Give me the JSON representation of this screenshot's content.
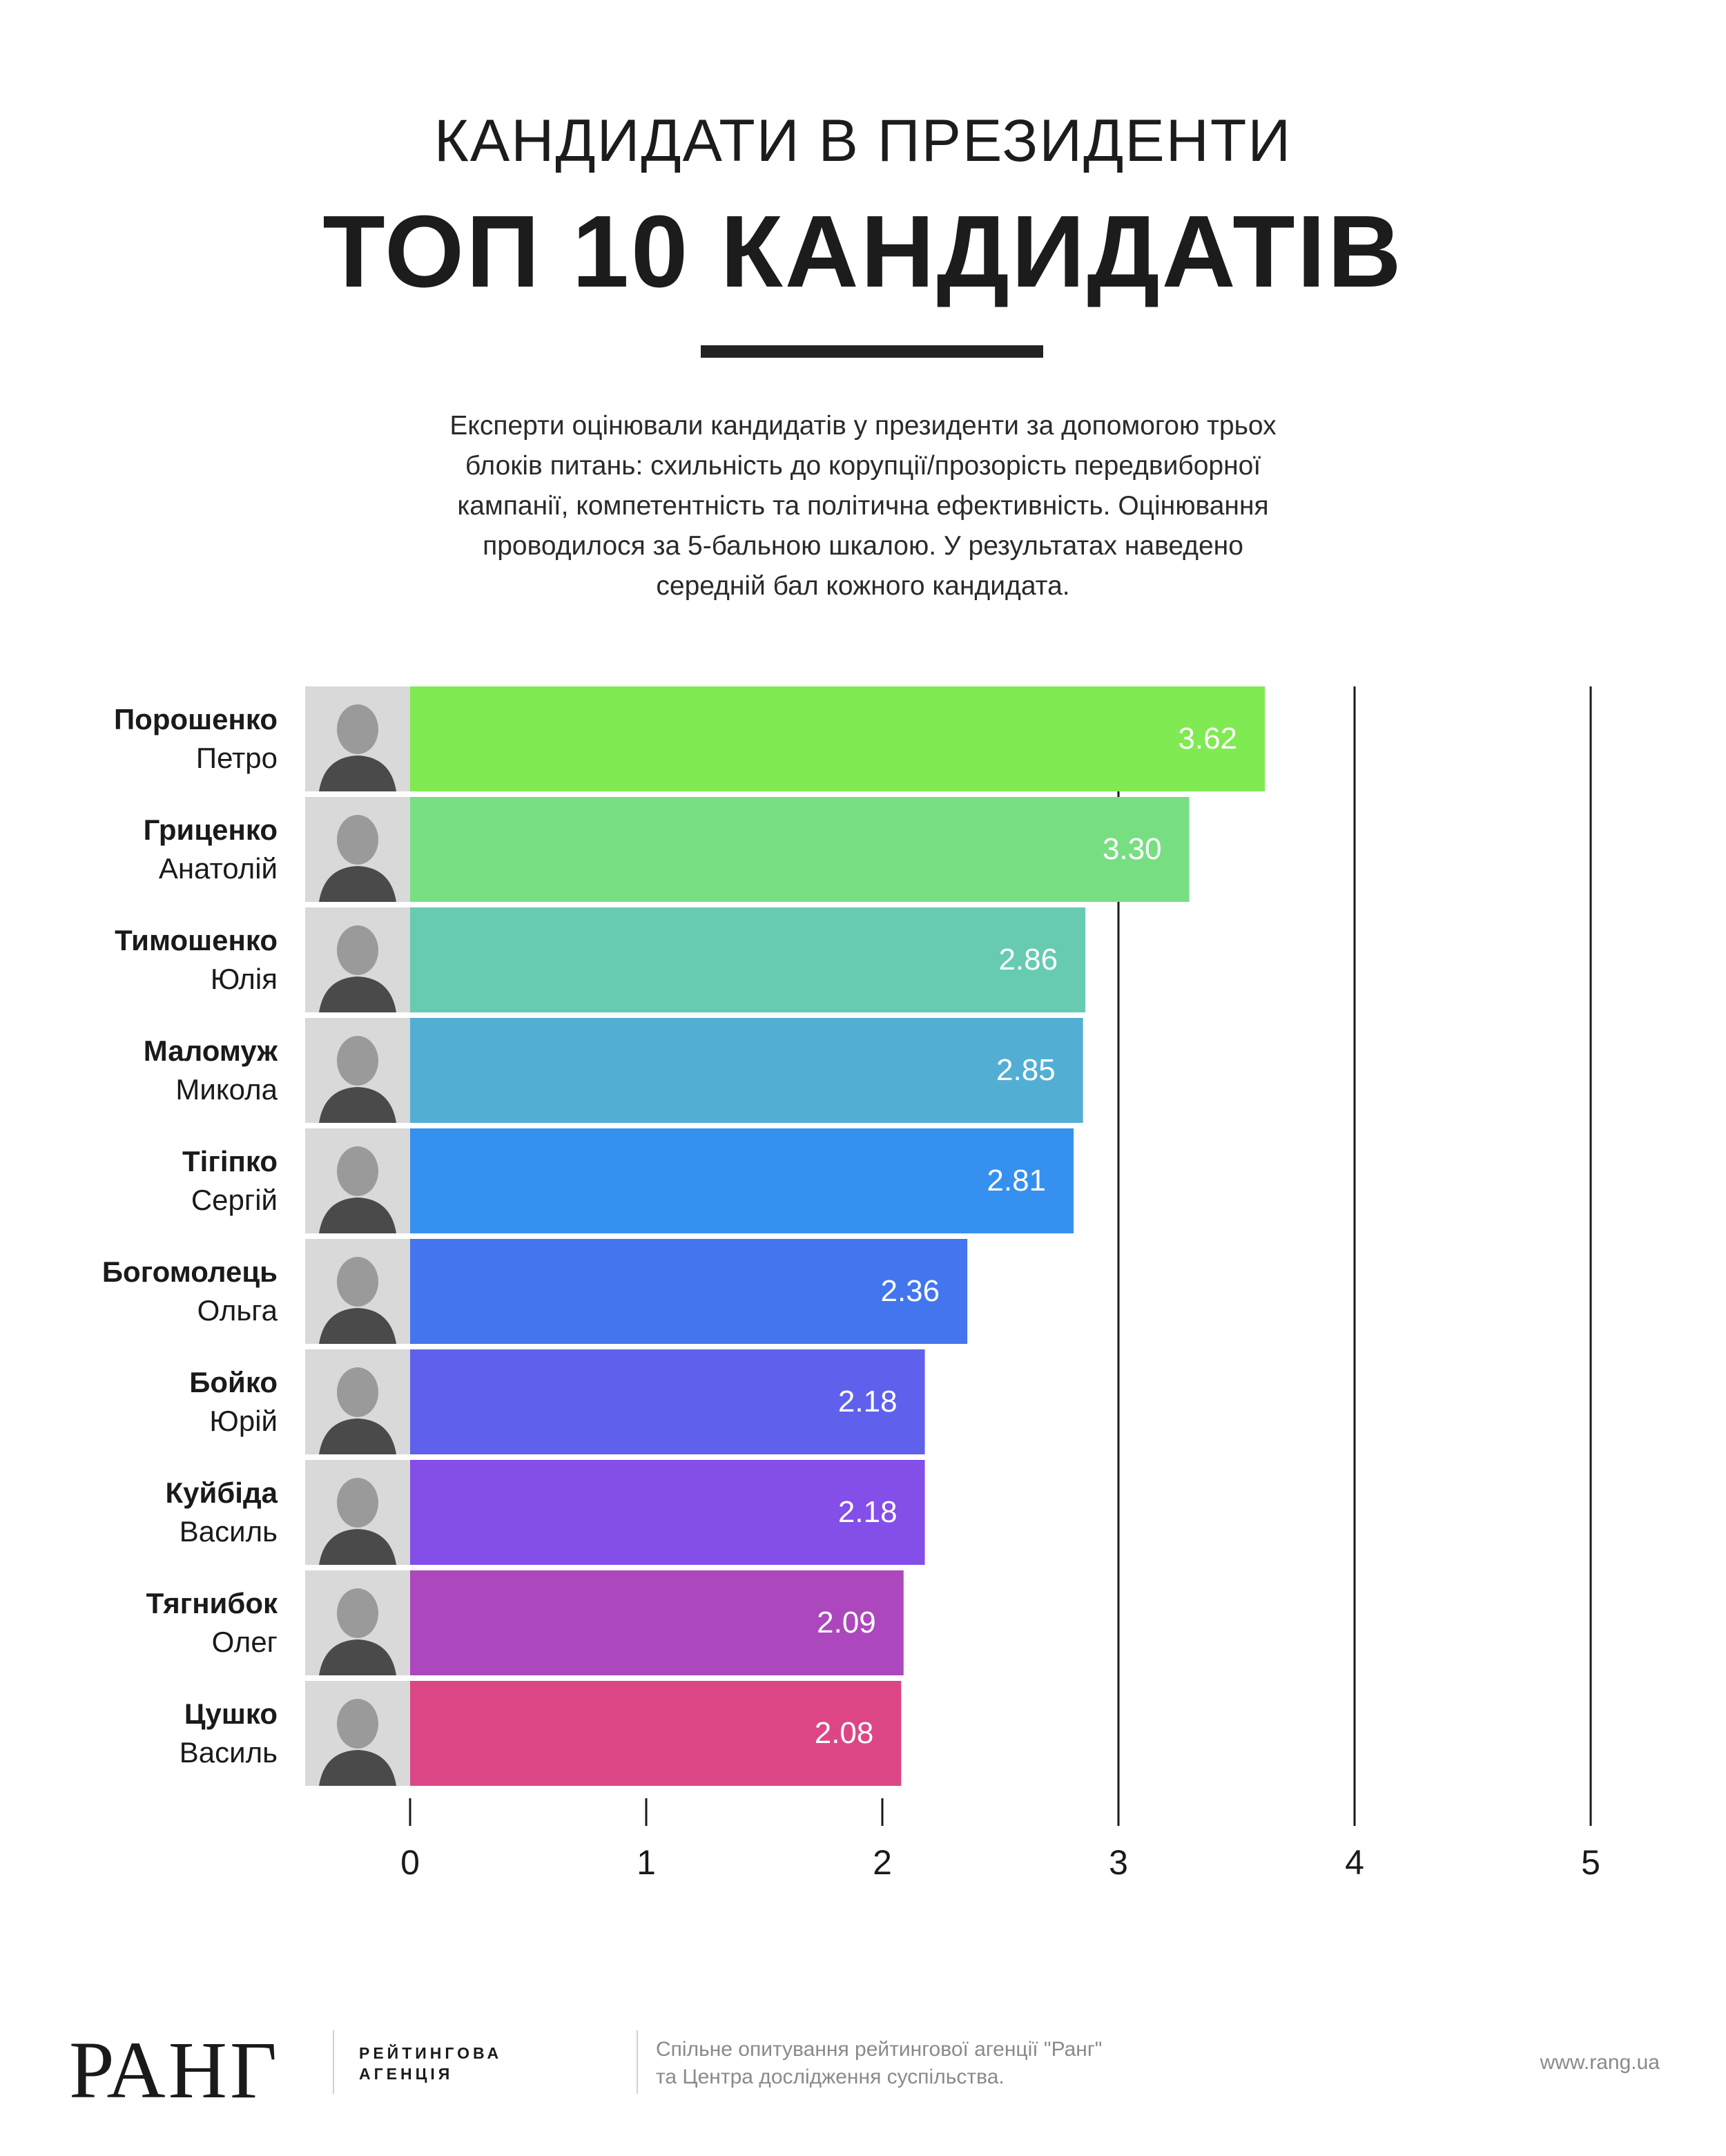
{
  "header": {
    "kicker": "КАНДИДАТИ В ПРЕЗИДЕНТИ",
    "headline": "ТОП 10 КАНДИДАТІВ",
    "intro_lines": [
      "Експерти оцінювали кандидатів у президенти за допомогою трьох",
      "блоків питань: схильність до корупції/прозорість передвиборної",
      "кампанії, компетентність та політична ефективність. Оцінювання",
      "проводилося за 5-бальною шкалою. У результатах наведено",
      "середній бал кожного кандидата."
    ]
  },
  "chart_data": {
    "type": "bar",
    "orientation": "horizontal",
    "title": "",
    "xlabel": "",
    "ylabel": "",
    "xlim": [
      0,
      5
    ],
    "x_ticks": [
      "0",
      "1",
      "2",
      "3",
      "4",
      "5"
    ],
    "gridlines": [
      3,
      4,
      5
    ],
    "candidates": [
      {
        "surname": "Порошенко",
        "first_name": "Петро",
        "value": 3.62,
        "label": "3.62",
        "color": "#7fea52"
      },
      {
        "surname": "Гриценко",
        "first_name": "Анатолій",
        "value": 3.3,
        "label": "3.30",
        "color": "#77df82"
      },
      {
        "surname": "Тимошенко",
        "first_name": "Юлія",
        "value": 2.86,
        "label": "2.86",
        "color": "#66cbb1"
      },
      {
        "surname": "Маломуж",
        "first_name": "Микола",
        "value": 2.85,
        "label": "2.85",
        "color": "#52afd3"
      },
      {
        "surname": "Тігіпко",
        "first_name": "Сергій",
        "value": 2.81,
        "label": "2.81",
        "color": "#3590ef"
      },
      {
        "surname": "Богомолець",
        "first_name": "Ольга",
        "value": 2.36,
        "label": "2.36",
        "color": "#4375ef"
      },
      {
        "surname": "Бойко",
        "first_name": "Юрій",
        "value": 2.18,
        "label": "2.18",
        "color": "#5f61ec"
      },
      {
        "surname": "Куйбіда",
        "first_name": "Василь",
        "value": 2.18,
        "label": "2.18",
        "color": "#844ee8"
      },
      {
        "surname": "Тягнибок",
        "first_name": "Олег",
        "value": 2.09,
        "label": "2.09",
        "color": "#ad47bd"
      },
      {
        "surname": "Цушко",
        "first_name": "Василь",
        "value": 2.08,
        "label": "2.08",
        "color": "#dd4685"
      }
    ]
  },
  "footer": {
    "logo": "РАНГ",
    "tag_line1": "РЕЙТИНГОВА",
    "tag_line2": "АГЕНЦІЯ",
    "note_line1": "Спільне опитування рейтингової агенції \"Ранг\"",
    "note_line2": "та Центра дослідження суспільства.",
    "url": "www.rang.ua"
  }
}
